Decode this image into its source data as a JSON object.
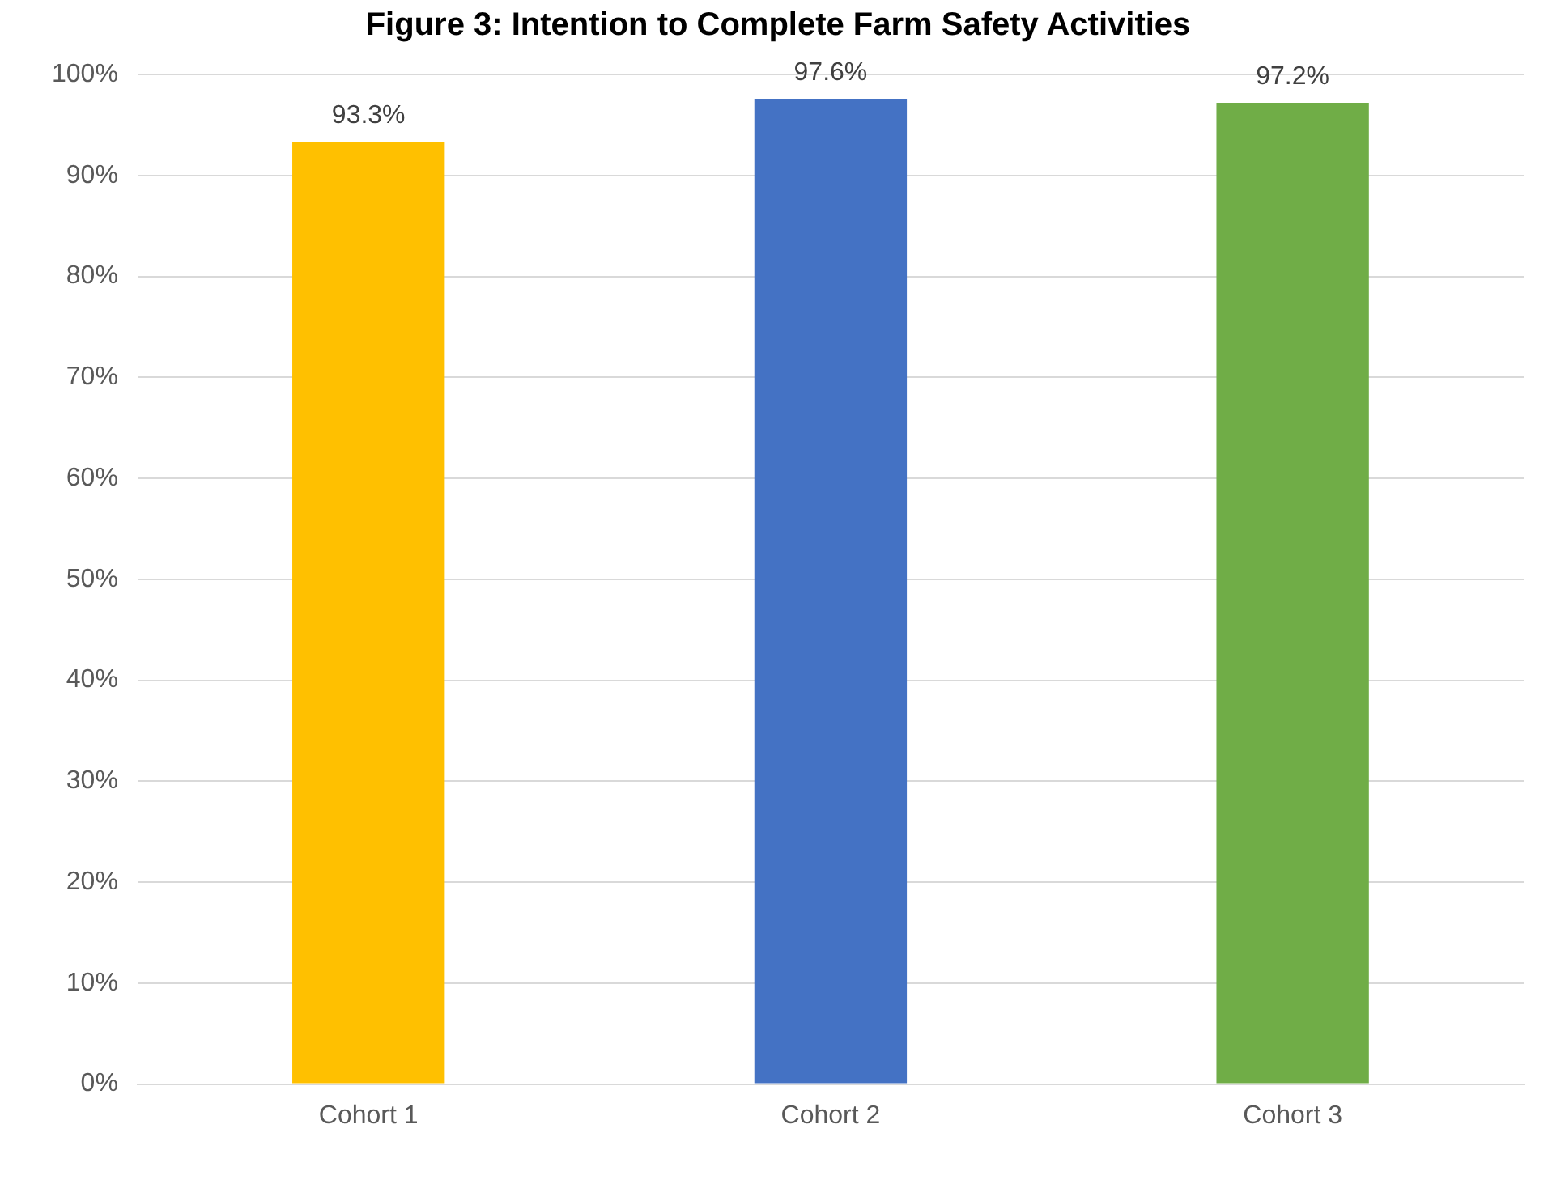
{
  "chart_data": {
    "type": "bar",
    "title": "Figure 3: Intention to Complete Farm Safety Activities",
    "categories": [
      "Cohort 1",
      "Cohort 2",
      "Cohort 3"
    ],
    "values": [
      93.3,
      97.6,
      97.2
    ],
    "colors": [
      "#ffc000",
      "#4472c4",
      "#70ad47"
    ],
    "value_labels": [
      "93.3%",
      "97.6%",
      "97.2%"
    ],
    "ylim": [
      0,
      100
    ],
    "yticks": [
      {
        "value": 0,
        "label": "0%"
      },
      {
        "value": 10,
        "label": "10%"
      },
      {
        "value": 20,
        "label": "20%"
      },
      {
        "value": 30,
        "label": "30%"
      },
      {
        "value": 40,
        "label": "40%"
      },
      {
        "value": 50,
        "label": "50%"
      },
      {
        "value": 60,
        "label": "60%"
      },
      {
        "value": 70,
        "label": "70%"
      },
      {
        "value": 80,
        "label": "80%"
      },
      {
        "value": 90,
        "label": "90%"
      },
      {
        "value": 100,
        "label": "100%"
      }
    ],
    "grid": "y",
    "legend": false
  }
}
